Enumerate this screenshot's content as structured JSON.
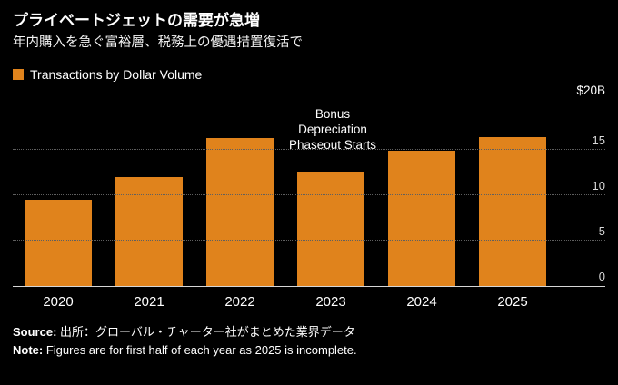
{
  "header": {
    "title": "プライベートジェットの需要が急増",
    "subtitle": "年内購入を急ぐ富裕層、税務上の優遇措置復活で"
  },
  "legend": {
    "label": "Transactions by Dollar Volume"
  },
  "chart_data": {
    "type": "bar",
    "title": "Transactions by Dollar Volume",
    "categories": [
      "2020",
      "2021",
      "2022",
      "2023",
      "2024",
      "2025"
    ],
    "values": [
      9.5,
      12.0,
      16.3,
      12.6,
      14.9,
      16.4
    ],
    "xlabel": "",
    "ylabel": "Transactions by Dollar Volume ($B)",
    "ylim": [
      0,
      20
    ],
    "yticks": [
      0,
      5,
      10,
      15
    ],
    "top_label": "$20B",
    "bar_color": "#E0831C",
    "grid": "dotted-horizontal",
    "legend_position": "top-left",
    "annotation": {
      "lines": [
        "Bonus",
        "Depreciation",
        "Phaseout Starts"
      ],
      "target_category": "2023"
    }
  },
  "footer": {
    "source_label": "Source:",
    "source_text": "出所：グローバル・チャーター社がまとめた業界データ",
    "note_label": "Note:",
    "note_text": "Figures are for first half of each year as 2025 is incomplete."
  },
  "colors": {
    "background": "#000000",
    "bar": "#E0831C",
    "text": "#FFFFFF",
    "tick_label": "#D9D9D9",
    "gridline": "#5F5F5F"
  }
}
